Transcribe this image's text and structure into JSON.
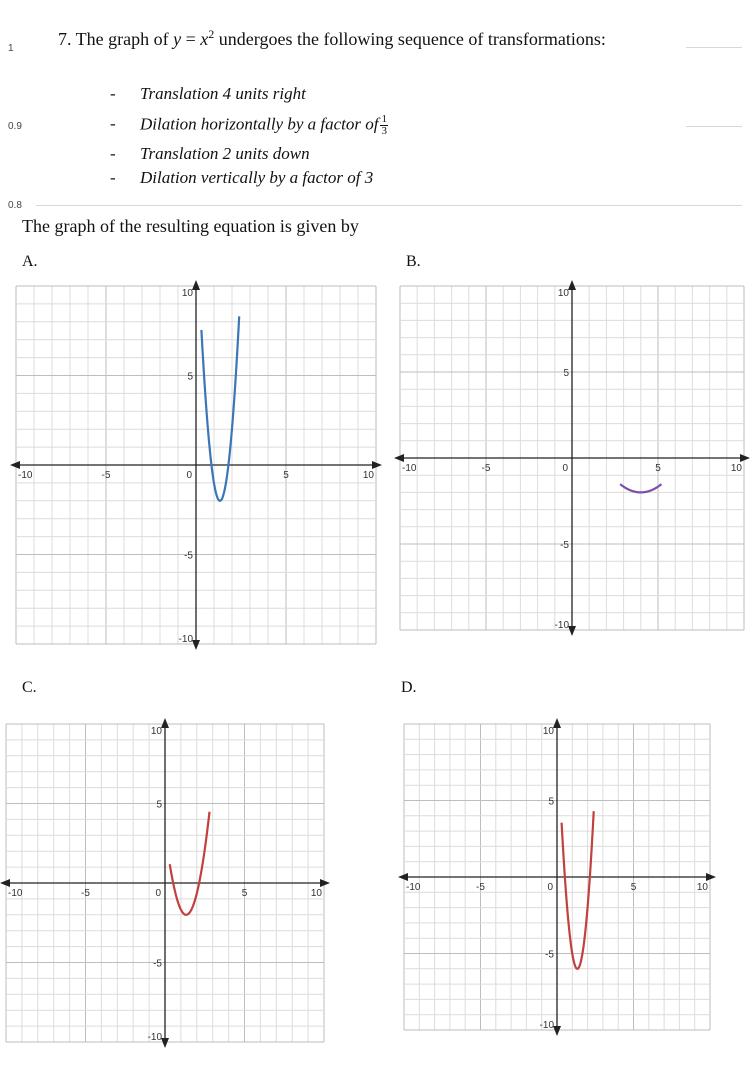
{
  "margin_numbers": [
    "1",
    "0.9",
    "0.8"
  ],
  "question": {
    "prefix": "7. The graph of ",
    "equation_lhs": "y",
    "equation_eq": " = ",
    "equation_base": "x",
    "equation_exp": "2",
    "suffix": " undergoes the following sequence of transformations:"
  },
  "transformations": [
    {
      "dash": "-",
      "text": "Translation 4 units right"
    },
    {
      "dash": "-",
      "text": "Dilation horizontally by a factor of",
      "fraction": {
        "num": "1",
        "den": "3"
      }
    },
    {
      "dash": "-",
      "text": "Translation 2 units down"
    },
    {
      "dash": "-",
      "text": "Dilation vertically by a factor of 3"
    }
  ],
  "prompt": "The graph of the resulting equation is given by",
  "options": [
    {
      "label": "A.",
      "color": "#3a76b8",
      "curve": {
        "h": 1.33,
        "k": -2,
        "a": 9,
        "x_range": [
          0.3,
          2.4
        ]
      }
    },
    {
      "label": "B.",
      "color": "#7a4fb0",
      "curve": {
        "h": 4,
        "k": -2,
        "a": 0.333,
        "x_range": [
          2.8,
          5.2
        ]
      }
    },
    {
      "label": "C.",
      "color": "#c0413e",
      "curve": {
        "h": 1.33,
        "k": -2,
        "a": 3,
        "x_range": [
          0.3,
          2.8
        ]
      }
    },
    {
      "label": "D.",
      "color": "#c0413e",
      "curve": {
        "h": 1.33,
        "k": -6,
        "a": 9,
        "x_range": [
          0.3,
          2.4
        ]
      }
    }
  ],
  "axis": {
    "x_ticks": [
      "-10",
      "-5",
      "0",
      "5",
      "10"
    ],
    "y_ticks": [
      "10",
      "5",
      "-5",
      "-10"
    ],
    "xlim": [
      -10,
      10
    ],
    "ylim": [
      -10,
      10
    ],
    "grid": true
  }
}
